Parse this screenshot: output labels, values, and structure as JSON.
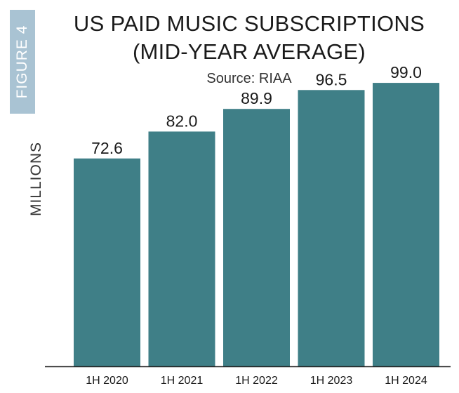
{
  "figure_tag": "FIGURE 4",
  "header": {
    "title_line1": "US PAID MUSIC SUBSCRIPTIONS",
    "title_line2": "(MID-YEAR AVERAGE)",
    "source": "Source: RIAA"
  },
  "colors": {
    "bar": "#3f7f87",
    "tag": "#a9c3d3",
    "axis": "#222222"
  },
  "chart_data": {
    "type": "bar",
    "title": "US PAID MUSIC SUBSCRIPTIONS (MID-YEAR AVERAGE)",
    "subtitle": "Source: RIAA",
    "xlabel": "",
    "ylabel": "MILLIONS",
    "categories": [
      "1H 2020",
      "1H 2021",
      "1H 2022",
      "1H 2023",
      "1H 2024"
    ],
    "values": [
      72.6,
      82.0,
      89.9,
      96.5,
      99.0
    ],
    "value_labels": [
      "72.6",
      "82.0",
      "89.9",
      "96.5",
      "99.0"
    ],
    "ylim": [
      0,
      100
    ],
    "grid": false,
    "legend": "none"
  }
}
